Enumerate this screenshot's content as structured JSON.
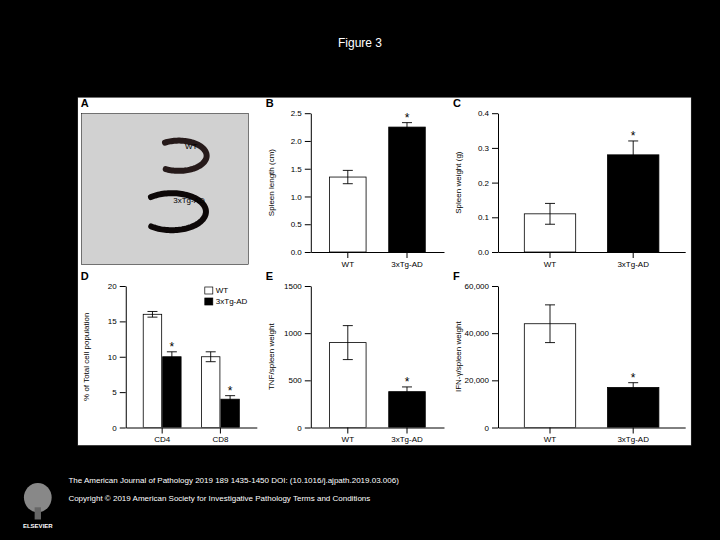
{
  "title": "Figure 3",
  "annotations": [
    "The American Journal of Pathology 2019 189 1435-1450 DOI: (10.1016/j.ajpath.2019.03.006)",
    "Copyright © 2019 American Society for Investigative Pathology  Terms and Conditions",
    "ELSEVIER"
  ],
  "chart_data": [
    {
      "type": "image",
      "title": "A",
      "annotations": [
        "WT",
        "3xTg-AD"
      ]
    },
    {
      "type": "bar",
      "title": "B",
      "categories": [
        "WT",
        "3xTg-AD"
      ],
      "values": [
        1.35,
        2.25
      ],
      "errors": [
        0.12,
        0.08
      ],
      "colors": [
        "#ffffff",
        "#000000"
      ],
      "ylabel": "Spleen length (cm)",
      "ylim": [
        0,
        2.5
      ],
      "yticks": [
        {
          "value": 0.0,
          "label": "0.0"
        },
        0.5,
        {
          "value": 1.0,
          "label": "1.0"
        },
        1.5,
        {
          "value": 2.0,
          "label": "2.0"
        },
        2.5
      ],
      "grid": false,
      "annotations": [
        {
          "text": "*",
          "category": "3xTg-AD"
        }
      ]
    },
    {
      "type": "bar",
      "title": "C",
      "categories": [
        "WT",
        "3xTg-AD"
      ],
      "values": [
        0.11,
        0.28
      ],
      "errors": [
        0.03,
        0.04
      ],
      "colors": [
        "#ffffff",
        "#000000"
      ],
      "ylabel": "Spleen weight (g)",
      "ylim": [
        0,
        0.4
      ],
      "yticks": [
        {
          "value": 0.0,
          "label": "0.0"
        },
        0.1,
        0.2,
        0.3,
        0.4
      ],
      "grid": false,
      "annotations": [
        {
          "text": "*",
          "category": "3xTg-AD"
        }
      ]
    },
    {
      "type": "bar",
      "title": "D",
      "categories": [
        "CD4",
        "CD8"
      ],
      "series": [
        {
          "name": "WT",
          "color": "#ffffff",
          "values": [
            16.0,
            10.0
          ],
          "errors": [
            0.4,
            0.7
          ]
        },
        {
          "name": "3xTg-AD",
          "color": "#000000",
          "values": [
            10.0,
            4.0
          ],
          "errors": [
            0.7,
            0.5
          ]
        }
      ],
      "ylabel": "% of Total cell population",
      "ylim": [
        0,
        20
      ],
      "yticks": [
        0,
        5,
        10,
        15,
        20
      ],
      "grid": false,
      "legend": "upper right",
      "annotations": [
        {
          "text": "*",
          "category": "CD4",
          "series": "3xTg-AD"
        },
        {
          "text": "*",
          "category": "CD8",
          "series": "3xTg-AD"
        }
      ]
    },
    {
      "type": "bar",
      "title": "E",
      "categories": [
        "WT",
        "3xTg-AD"
      ],
      "values": [
        900,
        380
      ],
      "errors": [
        180,
        50
      ],
      "colors": [
        "#ffffff",
        "#000000"
      ],
      "ylabel": "TNF/spleen weight",
      "ylim": [
        0,
        1500
      ],
      "yticks": [
        0,
        500,
        1000,
        1500
      ],
      "grid": false,
      "annotations": [
        {
          "text": "*",
          "category": "3xTg-AD"
        }
      ]
    },
    {
      "type": "bar",
      "title": "F",
      "categories": [
        "WT",
        "3xTg-AD"
      ],
      "values": [
        44000,
        17000
      ],
      "errors": [
        8000,
        2000
      ],
      "colors": [
        "#ffffff",
        "#000000"
      ],
      "ylabel": "IFN-γ/spleen weight",
      "ylim": [
        0,
        60000
      ],
      "yticks": [
        0,
        {
          "value": 20000,
          "label": "20,000"
        },
        {
          "value": 40000,
          "label": "40,000"
        },
        {
          "value": 60000,
          "label": "60,000"
        }
      ],
      "grid": false,
      "annotations": [
        {
          "text": "*",
          "category": "3xTg-AD"
        }
      ]
    }
  ]
}
